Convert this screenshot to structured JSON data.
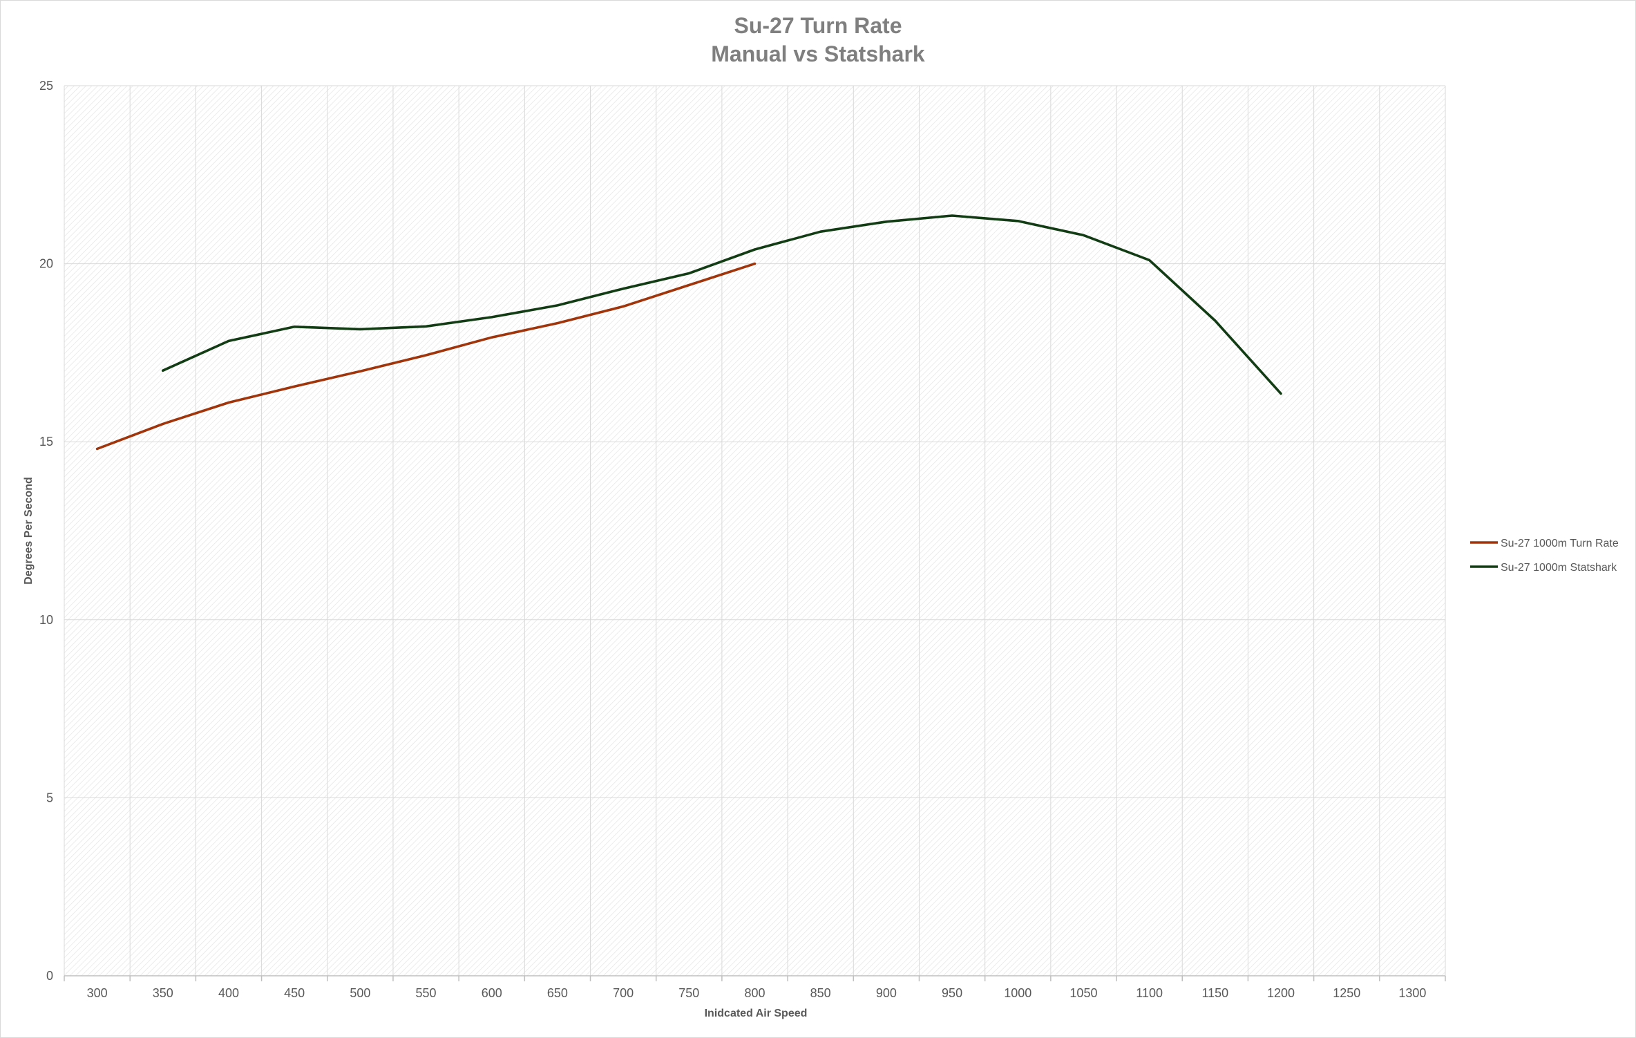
{
  "chart_data": {
    "type": "line",
    "title": "Su-27 Turn Rate",
    "subtitle": "Manual vs Statshark",
    "xlabel": "Inidcated Air Speed",
    "ylabel": "Degrees Per Second",
    "x_ticks": [
      300,
      350,
      400,
      450,
      500,
      550,
      600,
      650,
      700,
      750,
      800,
      850,
      900,
      950,
      1000,
      1050,
      1100,
      1150,
      1200,
      1250,
      1300
    ],
    "y_ticks": [
      0,
      5,
      10,
      15,
      20,
      25
    ],
    "ylim": [
      0,
      25
    ],
    "grid": true,
    "legend_position": "right",
    "series": [
      {
        "name": "Su-27 1000m Turn Rate",
        "color": "#a0340a",
        "x": [
          300,
          350,
          400,
          450,
          500,
          550,
          600,
          650,
          700,
          750,
          800
        ],
        "y": [
          14.8,
          15.5,
          16.1,
          16.55,
          16.98,
          17.43,
          17.93,
          18.33,
          18.8,
          19.4,
          20.0
        ]
      },
      {
        "name": "Su-27 1000m Statshark",
        "color": "#123d14",
        "x": [
          350,
          400,
          450,
          500,
          550,
          600,
          650,
          700,
          750,
          800,
          850,
          900,
          950,
          1000,
          1050,
          1100,
          1150,
          1200
        ],
        "y": [
          17.0,
          17.83,
          18.23,
          18.16,
          18.24,
          18.5,
          18.83,
          19.3,
          19.73,
          20.4,
          20.9,
          21.18,
          21.35,
          21.2,
          20.8,
          20.1,
          18.4,
          16.35
        ]
      }
    ]
  }
}
